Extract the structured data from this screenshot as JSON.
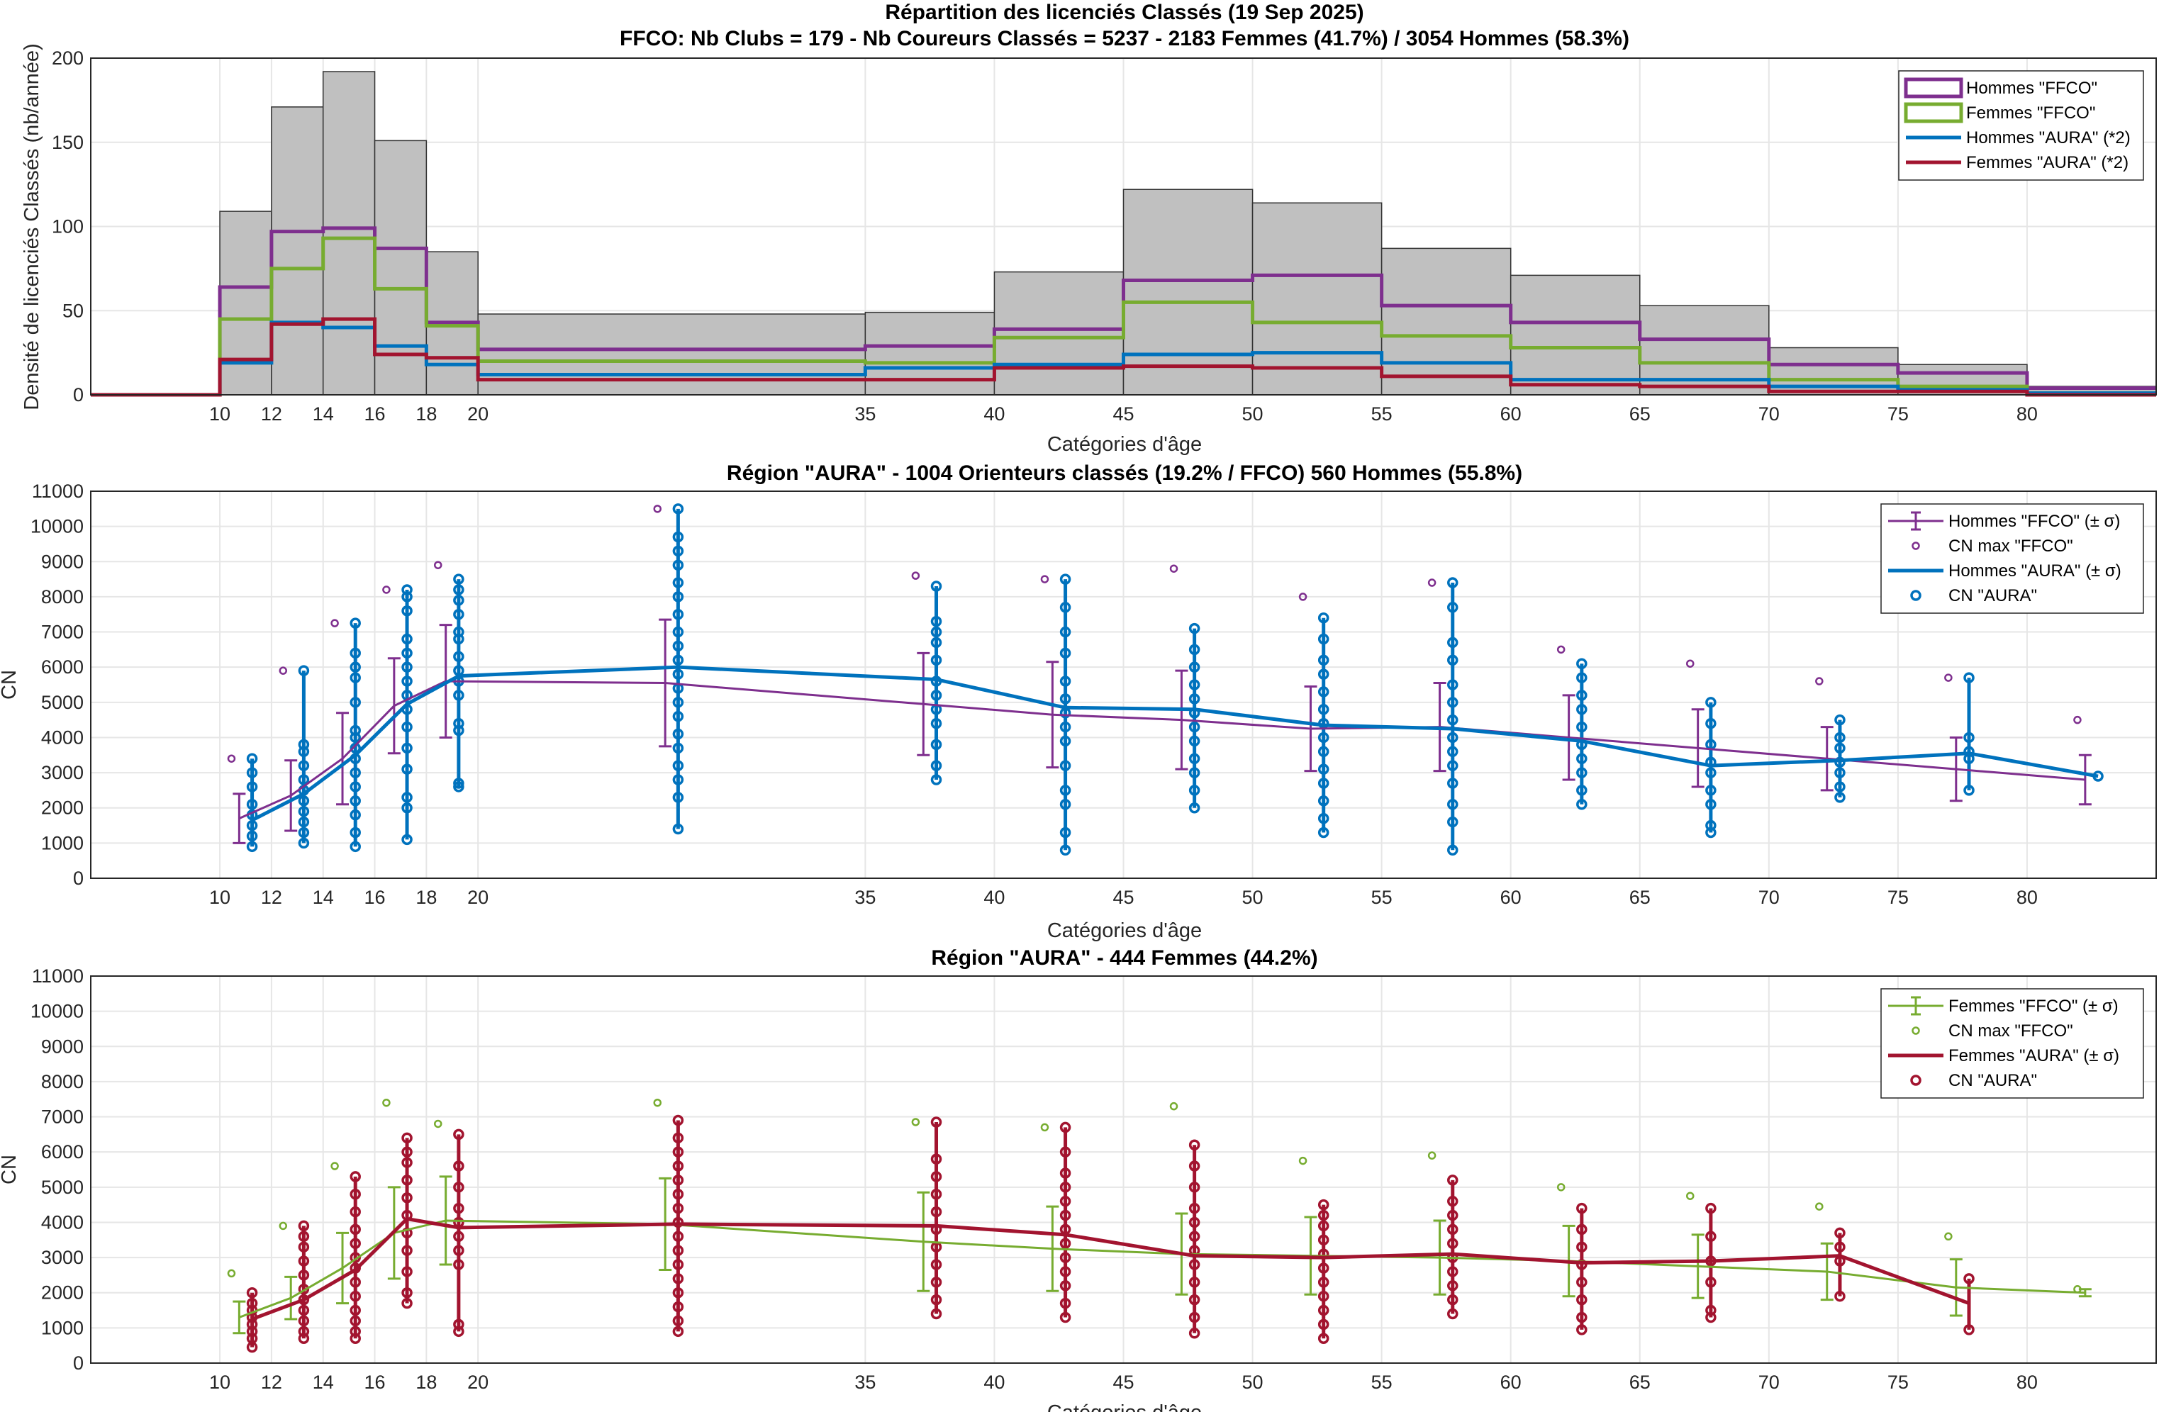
{
  "colors": {
    "hommes_ffco": "#7E2F8E",
    "femmes_ffco": "#77AC30",
    "hommes_aura": "#0072BD",
    "femmes_aura": "#A2142F",
    "histogram": "#C0C0C0"
  },
  "chart_data": [
    {
      "type": "bar",
      "title": "Répartition des licenciés Classés (19 Sep 2025)",
      "subtitle": "FFCO: Nb Clubs = 179   -   Nb Coureurs Classés = 5237   -   2183 Femmes (41.7%) / 3054 Hommes (58.3%)",
      "xlabel": "Catégories d'âge",
      "ylabel": "Densité de licenciés Classés (nb/année)",
      "xlim": [
        5,
        85
      ],
      "ylim": [
        0,
        200
      ],
      "grid": true,
      "legend_position": "top-right",
      "xticks": [
        10,
        12,
        14,
        16,
        18,
        20,
        35,
        40,
        45,
        50,
        55,
        60,
        65,
        70,
        75,
        80
      ],
      "yticks": [
        0,
        50,
        100,
        150,
        200
      ],
      "bin_edges": [
        5,
        10,
        12,
        14,
        16,
        18,
        20,
        35,
        40,
        45,
        50,
        55,
        60,
        65,
        70,
        75,
        80,
        85
      ],
      "total": [
        0,
        109,
        171,
        192,
        151,
        85,
        48,
        49,
        73,
        122,
        114,
        87,
        71,
        53,
        28,
        18,
        5
      ],
      "series": [
        {
          "name": "Hommes \"FFCO\"",
          "values": [
            0,
            64,
            97,
            99,
            87,
            43,
            27,
            29,
            39,
            68,
            71,
            53,
            43,
            33,
            18,
            13,
            4
          ]
        },
        {
          "name": "Femmes \"FFCO\"",
          "values": [
            0,
            45,
            75,
            93,
            63,
            41,
            20,
            19,
            34,
            55,
            43,
            35,
            28,
            19,
            9,
            5,
            1
          ]
        },
        {
          "name": "Hommes \"AURA\" (*2)",
          "values": [
            0,
            19,
            43,
            40,
            29,
            18,
            12,
            16,
            18,
            24,
            25,
            19,
            9,
            9,
            5,
            3,
            1
          ]
        },
        {
          "name": "Femmes \"AURA\" (*2)",
          "values": [
            0,
            21,
            42,
            45,
            24,
            22,
            9,
            9,
            16,
            17,
            16,
            11,
            6,
            5,
            2,
            2,
            0
          ]
        }
      ]
    },
    {
      "type": "line",
      "title": "Région \"AURA\"  -  1004 Orienteurs classés (19.2% / FFCO)  560 Hommes (55.8%)",
      "xlabel": "Catégories d'âge",
      "ylabel": "CN",
      "xlim": [
        5,
        85
      ],
      "ylim": [
        0,
        11000
      ],
      "grid": true,
      "legend_position": "top-right",
      "xticks": [
        10,
        12,
        14,
        16,
        18,
        20,
        35,
        40,
        45,
        50,
        55,
        60,
        65,
        70,
        75,
        80
      ],
      "yticks": [
        0,
        1000,
        2000,
        3000,
        4000,
        5000,
        6000,
        7000,
        8000,
        9000,
        10000,
        11000
      ],
      "x": [
        11,
        13,
        15,
        17,
        19,
        27.5,
        37.5,
        42.5,
        47.5,
        52.5,
        57.5,
        62.5,
        67.5,
        72.5,
        77.5,
        82.5
      ],
      "ffco": {
        "name": "Hommes \"FFCO\" (± σ)",
        "mean": [
          1700,
          2350,
          3400,
          4900,
          5600,
          5550,
          4950,
          4650,
          4500,
          4250,
          4300,
          4000,
          3700,
          3400,
          3100,
          2800
        ],
        "sigma": [
          700,
          1000,
          1300,
          1350,
          1600,
          1800,
          1450,
          1500,
          1400,
          1200,
          1250,
          1200,
          1100,
          900,
          900,
          700
        ]
      },
      "cnmax": {
        "name": "CN max \"FFCO\"",
        "values": [
          3400,
          5900,
          7250,
          8200,
          8900,
          10500,
          8600,
          8500,
          8800,
          8000,
          8400,
          6500,
          6100,
          5600,
          5700,
          4500
        ]
      },
      "aura": {
        "name": "Hommes \"AURA\" (± σ)",
        "mean": [
          1650,
          2400,
          3500,
          4950,
          5750,
          6000,
          5650,
          4850,
          4800,
          4350,
          4250,
          3900,
          3200,
          3350,
          3550,
          2900
        ]
      },
      "points": {
        "name": "CN \"AURA\"",
        "values": [
          [
            900,
            1200,
            1500,
            1800,
            2100,
            2600,
            3000,
            3400
          ],
          [
            1000,
            1300,
            1600,
            1900,
            2200,
            2500,
            2800,
            3200,
            3600,
            3800,
            5900
          ],
          [
            900,
            1300,
            1800,
            2200,
            2600,
            3000,
            3400,
            3700,
            4000,
            4200,
            5000,
            5700,
            6000,
            6400,
            7250
          ],
          [
            1100,
            2000,
            2300,
            3100,
            3700,
            4300,
            4800,
            5200,
            5600,
            6000,
            6400,
            6800,
            7600,
            8000,
            8200
          ],
          [
            2600,
            2700,
            4200,
            4400,
            5200,
            5600,
            5900,
            6300,
            6800,
            7000,
            7500,
            7900,
            8200,
            8500
          ],
          [
            1400,
            2300,
            2800,
            3200,
            3700,
            4100,
            4600,
            5000,
            5400,
            5800,
            6200,
            6600,
            7000,
            7500,
            8000,
            8400,
            8900,
            9300,
            9700,
            10500
          ],
          [
            2800,
            3200,
            3800,
            4400,
            4800,
            5200,
            5600,
            6200,
            6700,
            7000,
            7300,
            8300
          ],
          [
            800,
            1300,
            2100,
            2500,
            3200,
            3900,
            4300,
            4700,
            5100,
            5600,
            6400,
            7000,
            7700,
            8500
          ],
          [
            2000,
            2500,
            3000,
            3400,
            3900,
            4300,
            4700,
            5100,
            5500,
            6000,
            6500,
            7100
          ],
          [
            1300,
            1700,
            2200,
            2700,
            3100,
            3600,
            4000,
            4400,
            4800,
            5300,
            5800,
            6200,
            6800,
            7400
          ],
          [
            800,
            1600,
            2100,
            2700,
            3200,
            3600,
            4000,
            4500,
            5000,
            5500,
            6200,
            6700,
            7700,
            8400
          ],
          [
            2100,
            2500,
            3000,
            3400,
            3800,
            4300,
            4800,
            5200,
            5700,
            6100
          ],
          [
            1300,
            1500,
            2100,
            2500,
            3000,
            3300,
            3800,
            4400,
            5000
          ],
          [
            2300,
            2600,
            3000,
            3300,
            3700,
            4000,
            4500
          ],
          [
            2500,
            3400,
            3600,
            4000,
            5700
          ],
          [
            2900
          ]
        ]
      }
    },
    {
      "type": "line",
      "title": "Région \"AURA\"  -  444 Femmes (44.2%)",
      "xlabel": "Catégories d'âge",
      "ylabel": "CN",
      "xlim": [
        5,
        85
      ],
      "ylim": [
        0,
        11000
      ],
      "grid": true,
      "legend_position": "top-right",
      "xticks": [
        10,
        12,
        14,
        16,
        18,
        20,
        35,
        40,
        45,
        50,
        55,
        60,
        65,
        70,
        75,
        80
      ],
      "yticks": [
        0,
        1000,
        2000,
        3000,
        4000,
        5000,
        6000,
        7000,
        8000,
        9000,
        10000,
        11000
      ],
      "x": [
        11,
        13,
        15,
        17,
        19,
        27.5,
        37.5,
        42.5,
        47.5,
        52.5,
        57.5,
        62.5,
        67.5,
        72.5,
        77.5,
        82.5
      ],
      "ffco": {
        "name": "Femmes \"FFCO\" (± σ)",
        "mean": [
          1300,
          1850,
          2700,
          3700,
          4050,
          3950,
          3450,
          3250,
          3100,
          3050,
          3000,
          2900,
          2750,
          2600,
          2150,
          2000
        ],
        "sigma": [
          450,
          600,
          1000,
          1300,
          1250,
          1300,
          1400,
          1200,
          1150,
          1100,
          1050,
          1000,
          900,
          800,
          800,
          100
        ]
      },
      "cnmax": {
        "name": "CN max \"FFCO\"",
        "values": [
          2550,
          3900,
          5600,
          7400,
          6800,
          7400,
          6850,
          6700,
          7300,
          5750,
          5900,
          5000,
          4750,
          4450,
          3600,
          2100
        ]
      },
      "aura": {
        "name": "Femmes \"AURA\" (± σ)",
        "mean": [
          1250,
          1800,
          2650,
          4100,
          3850,
          3950,
          3900,
          3650,
          3050,
          3000,
          3100,
          2850,
          2900,
          3050,
          1700,
          null
        ]
      },
      "points": {
        "name": "CN \"AURA\"",
        "values": [
          [
            450,
            700,
            900,
            1100,
            1300,
            1500,
            1700,
            2000
          ],
          [
            700,
            900,
            1200,
            1500,
            1800,
            2100,
            2500,
            2900,
            3300,
            3600,
            3900
          ],
          [
            700,
            900,
            1200,
            1500,
            1900,
            2300,
            2700,
            3000,
            3400,
            3800,
            4300,
            4800,
            5300
          ],
          [
            1700,
            2000,
            2600,
            3200,
            3700,
            4200,
            4700,
            5200,
            5700,
            6000,
            6400
          ],
          [
            900,
            1100,
            2800,
            3200,
            3600,
            4000,
            4400,
            5000,
            5600,
            6500
          ],
          [
            900,
            1200,
            1600,
            2000,
            2400,
            2800,
            3200,
            3600,
            4000,
            4400,
            4800,
            5200,
            5600,
            6000,
            6400,
            6900
          ],
          [
            1400,
            1800,
            2300,
            2800,
            3300,
            3800,
            4300,
            4800,
            5300,
            5800,
            6850
          ],
          [
            1300,
            1700,
            2200,
            2600,
            3000,
            3400,
            3800,
            4200,
            4600,
            5000,
            5400,
            6000,
            6700
          ],
          [
            850,
            1300,
            1800,
            2300,
            2800,
            3200,
            3600,
            4000,
            4400,
            5000,
            5600,
            6200
          ],
          [
            700,
            1100,
            1500,
            1900,
            2300,
            2700,
            3100,
            3500,
            3900,
            4200,
            4500
          ],
          [
            1400,
            1800,
            2200,
            2600,
            3000,
            3400,
            3800,
            4200,
            4600,
            5200
          ],
          [
            950,
            1300,
            1800,
            2300,
            2800,
            3300,
            3800,
            4400
          ],
          [
            1300,
            1500,
            2300,
            2900,
            3600,
            4400
          ],
          [
            1900,
            2900,
            3300,
            3700
          ],
          [
            950,
            2400
          ],
          []
        ]
      }
    }
  ]
}
